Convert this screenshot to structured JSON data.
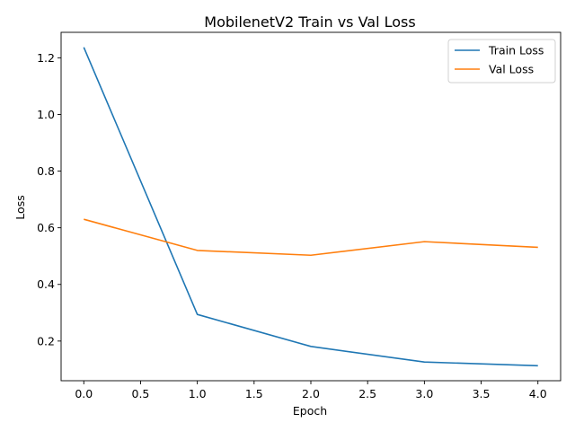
{
  "chart_data": {
    "type": "line",
    "title": "MobilenetV2 Train vs Val Loss",
    "xlabel": "Epoch",
    "ylabel": "Loss",
    "x": [
      0,
      1,
      2,
      3,
      4
    ],
    "xlim": [
      -0.2,
      4.2
    ],
    "ylim": [
      0.06,
      1.29
    ],
    "xticks": [
      0.0,
      0.5,
      1.0,
      1.5,
      2.0,
      2.5,
      3.0,
      3.5,
      4.0
    ],
    "xtick_labels": [
      "0.0",
      "0.5",
      "1.0",
      "1.5",
      "2.0",
      "2.5",
      "3.0",
      "3.5",
      "4.0"
    ],
    "yticks": [
      0.2,
      0.4,
      0.6,
      0.8,
      1.0,
      1.2
    ],
    "ytick_labels": [
      "0.2",
      "0.4",
      "0.6",
      "0.8",
      "1.0",
      "1.2"
    ],
    "grid": false,
    "legend_position": "top-right",
    "series": [
      {
        "name": "Train Loss",
        "color": "#1f77b4",
        "values": [
          1.237,
          0.294,
          0.181,
          0.126,
          0.113
        ]
      },
      {
        "name": "Val Loss",
        "color": "#ff7f0e",
        "values": [
          0.63,
          0.52,
          0.503,
          0.551,
          0.531
        ]
      }
    ]
  }
}
